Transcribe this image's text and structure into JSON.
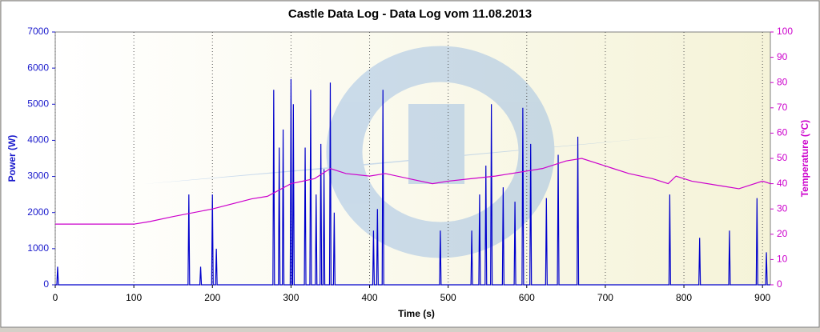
{
  "chart_data": {
    "type": "line",
    "title": "Castle Data Log - Data Log vom 11.08.2013",
    "x_label": "Time (s)",
    "y_label": "Power (W)",
    "y2_label": "Temperature (°C)",
    "xlim": [
      0,
      910
    ],
    "xticks": [
      0,
      100,
      200,
      300,
      400,
      500,
      600,
      700,
      800,
      900
    ],
    "ylim": [
      0,
      7000
    ],
    "yticks": [
      0,
      1000,
      2000,
      3000,
      4000,
      5000,
      6000,
      7000
    ],
    "y2lim": [
      0,
      100
    ],
    "y2ticks": [
      0,
      10,
      20,
      30,
      40,
      50,
      60,
      70,
      80,
      90,
      100
    ],
    "grid": true,
    "series": [
      {
        "name": "Power (W)",
        "color": "#0000cc",
        "x": [
          0,
          2,
          3,
          4,
          169,
          170,
          171,
          184,
          185,
          186,
          199,
          200,
          201,
          204,
          205,
          206,
          277,
          278,
          279,
          284,
          285,
          286,
          289,
          290,
          291,
          299,
          300,
          301,
          302,
          303,
          304,
          317,
          318,
          319,
          324,
          325,
          326,
          331,
          332,
          333,
          337,
          338,
          339,
          341,
          342,
          343,
          349,
          350,
          351,
          354,
          355,
          356,
          404,
          405,
          406,
          409,
          410,
          411,
          416,
          417,
          418,
          489,
          490,
          491,
          529,
          530,
          531,
          539,
          540,
          541,
          547,
          548,
          549,
          554,
          555,
          556,
          569,
          570,
          571,
          584,
          585,
          586,
          594,
          595,
          596,
          604,
          605,
          606,
          624,
          625,
          626,
          639,
          640,
          641,
          664,
          665,
          666,
          781,
          782,
          783,
          819,
          820,
          821,
          857,
          858,
          859,
          892,
          893,
          894,
          904,
          905,
          906,
          910
        ],
        "values": [
          0,
          0,
          500,
          0,
          0,
          2500,
          0,
          0,
          500,
          0,
          0,
          2500,
          0,
          0,
          1000,
          0,
          0,
          5400,
          0,
          0,
          3800,
          0,
          0,
          4300,
          0,
          0,
          5700,
          0,
          0,
          5000,
          0,
          0,
          3800,
          0,
          0,
          5400,
          0,
          0,
          2500,
          0,
          0,
          3900,
          0,
          0,
          3200,
          0,
          0,
          5600,
          0,
          0,
          2000,
          0,
          0,
          1500,
          0,
          0,
          2100,
          0,
          0,
          5400,
          0,
          0,
          1500,
          0,
          0,
          1500,
          0,
          0,
          2500,
          0,
          0,
          3300,
          0,
          0,
          5000,
          0,
          0,
          2700,
          0,
          0,
          2300,
          0,
          0,
          4900,
          0,
          0,
          3900,
          0,
          0,
          2400,
          0,
          0,
          3600,
          0,
          0,
          4100,
          0,
          0,
          2500,
          0,
          0,
          1300,
          0,
          0,
          1500,
          0,
          0,
          2400,
          0,
          0,
          900,
          0,
          0
        ]
      },
      {
        "name": "Temperature (°C)",
        "color": "#cc00cc",
        "axis": "y2",
        "x": [
          0,
          50,
          100,
          120,
          150,
          200,
          250,
          270,
          300,
          330,
          350,
          370,
          400,
          420,
          450,
          480,
          500,
          530,
          560,
          600,
          620,
          650,
          670,
          700,
          730,
          760,
          780,
          790,
          810,
          850,
          870,
          900,
          910
        ],
        "values": [
          24,
          24,
          24,
          25,
          27,
          30,
          34,
          35,
          40,
          42,
          46,
          44,
          43,
          44,
          42,
          40,
          41,
          42,
          43,
          45,
          46,
          49,
          50,
          47,
          44,
          42,
          40,
          43,
          41,
          39,
          38,
          41,
          40
        ]
      }
    ]
  }
}
